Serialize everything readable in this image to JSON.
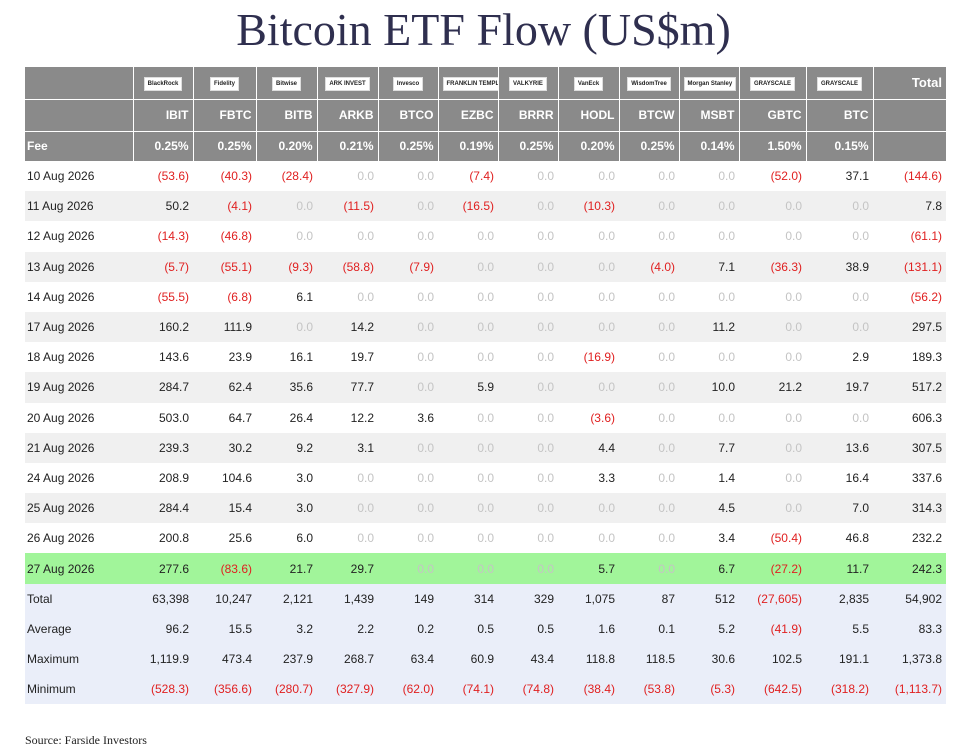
{
  "title": "Bitcoin ETF Flow (US$m)",
  "source": "Source: Farside Investors",
  "header": {
    "total_label": "Total",
    "fee_label": "Fee",
    "issuers": [
      "BlackRock",
      "Fidelity",
      "Bitwise",
      "ARK INVEST",
      "Invesco",
      "FRANKLIN TEMPLETON",
      "VALKYRIE",
      "VanEck",
      "WisdomTree",
      "Morgan Stanley",
      "GRAYSCALE",
      "GRAYSCALE"
    ],
    "tickers": [
      "IBIT",
      "FBTC",
      "BITB",
      "ARKB",
      "BTCO",
      "EZBC",
      "BRRR",
      "HODL",
      "BTCW",
      "MSBT",
      "GBTC",
      "BTC"
    ],
    "fees": [
      "0.25%",
      "0.25%",
      "0.20%",
      "0.21%",
      "0.25%",
      "0.19%",
      "0.25%",
      "0.20%",
      "0.25%",
      "0.14%",
      "1.50%",
      "0.15%"
    ]
  },
  "rows": [
    {
      "date": "10 Aug 2026",
      "cells": [
        "(53.6)",
        "(40.3)",
        "(28.4)",
        "0.0",
        "0.0",
        "(7.4)",
        "0.0",
        "0.0",
        "0.0",
        "0.0",
        "(52.0)",
        "37.1"
      ],
      "total": "(144.6)"
    },
    {
      "date": "11 Aug 2026",
      "cells": [
        "50.2",
        "(4.1)",
        "0.0",
        "(11.5)",
        "0.0",
        "(16.5)",
        "0.0",
        "(10.3)",
        "0.0",
        "0.0",
        "0.0",
        "0.0"
      ],
      "total": "7.8"
    },
    {
      "date": "12 Aug 2026",
      "cells": [
        "(14.3)",
        "(46.8)",
        "0.0",
        "0.0",
        "0.0",
        "0.0",
        "0.0",
        "0.0",
        "0.0",
        "0.0",
        "0.0",
        "0.0"
      ],
      "total": "(61.1)"
    },
    {
      "date": "13 Aug 2026",
      "cells": [
        "(5.7)",
        "(55.1)",
        "(9.3)",
        "(58.8)",
        "(7.9)",
        "0.0",
        "0.0",
        "0.0",
        "(4.0)",
        "7.1",
        "(36.3)",
        "38.9"
      ],
      "total": "(131.1)"
    },
    {
      "date": "14 Aug 2026",
      "cells": [
        "(55.5)",
        "(6.8)",
        "6.1",
        "0.0",
        "0.0",
        "0.0",
        "0.0",
        "0.0",
        "0.0",
        "0.0",
        "0.0",
        "0.0"
      ],
      "total": "(56.2)"
    },
    {
      "date": "17 Aug 2026",
      "cells": [
        "160.2",
        "111.9",
        "0.0",
        "14.2",
        "0.0",
        "0.0",
        "0.0",
        "0.0",
        "0.0",
        "11.2",
        "0.0",
        "0.0"
      ],
      "total": "297.5"
    },
    {
      "date": "18 Aug 2026",
      "cells": [
        "143.6",
        "23.9",
        "16.1",
        "19.7",
        "0.0",
        "0.0",
        "0.0",
        "(16.9)",
        "0.0",
        "0.0",
        "0.0",
        "2.9"
      ],
      "total": "189.3"
    },
    {
      "date": "19 Aug 2026",
      "cells": [
        "284.7",
        "62.4",
        "35.6",
        "77.7",
        "0.0",
        "5.9",
        "0.0",
        "0.0",
        "0.0",
        "10.0",
        "21.2",
        "19.7"
      ],
      "total": "517.2"
    },
    {
      "date": "20 Aug 2026",
      "cells": [
        "503.0",
        "64.7",
        "26.4",
        "12.2",
        "3.6",
        "0.0",
        "0.0",
        "(3.6)",
        "0.0",
        "0.0",
        "0.0",
        "0.0"
      ],
      "total": "606.3"
    },
    {
      "date": "21 Aug 2026",
      "cells": [
        "239.3",
        "30.2",
        "9.2",
        "3.1",
        "0.0",
        "0.0",
        "0.0",
        "4.4",
        "0.0",
        "7.7",
        "0.0",
        "13.6"
      ],
      "total": "307.5"
    },
    {
      "date": "24 Aug 2026",
      "cells": [
        "208.9",
        "104.6",
        "3.0",
        "0.0",
        "0.0",
        "0.0",
        "0.0",
        "3.3",
        "0.0",
        "1.4",
        "0.0",
        "16.4"
      ],
      "total": "337.6"
    },
    {
      "date": "25 Aug 2026",
      "cells": [
        "284.4",
        "15.4",
        "3.0",
        "0.0",
        "0.0",
        "0.0",
        "0.0",
        "0.0",
        "0.0",
        "4.5",
        "0.0",
        "7.0"
      ],
      "total": "314.3"
    },
    {
      "date": "26 Aug 2026",
      "cells": [
        "200.8",
        "25.6",
        "6.0",
        "0.0",
        "0.0",
        "0.0",
        "0.0",
        "0.0",
        "0.0",
        "3.4",
        "(50.4)",
        "46.8"
      ],
      "total": "232.2"
    },
    {
      "date": "27 Aug 2026",
      "cells": [
        "277.6",
        "(83.6)",
        "21.7",
        "29.7",
        "0.0",
        "0.0",
        "0.0",
        "5.7",
        "0.0",
        "6.7",
        "(27.2)",
        "11.7"
      ],
      "total": "242.3",
      "highlight": true
    }
  ],
  "stats": [
    {
      "label": "Total",
      "cells": [
        "63,398",
        "10,247",
        "2,121",
        "1,439",
        "149",
        "314",
        "329",
        "1,075",
        "87",
        "512",
        "(27,605)",
        "2,835"
      ],
      "total": "54,902"
    },
    {
      "label": "Average",
      "cells": [
        "96.2",
        "15.5",
        "3.2",
        "2.2",
        "0.2",
        "0.5",
        "0.5",
        "1.6",
        "0.1",
        "5.2",
        "(41.9)",
        "5.5"
      ],
      "total": "83.3"
    },
    {
      "label": "Maximum",
      "cells": [
        "1,119.9",
        "473.4",
        "237.9",
        "268.7",
        "63.4",
        "60.9",
        "43.4",
        "118.8",
        "118.5",
        "30.6",
        "102.5",
        "191.1"
      ],
      "total": "1,373.8"
    },
    {
      "label": "Minimum",
      "cells": [
        "(528.3)",
        "(356.6)",
        "(280.7)",
        "(327.9)",
        "(62.0)",
        "(74.1)",
        "(74.8)",
        "(38.4)",
        "(53.8)",
        "(5.3)",
        "(642.5)",
        "(318.2)"
      ],
      "total": "(1,113.7)"
    }
  ],
  "colors": {
    "header_bg": "#8a8a8a",
    "negative": "#e02020",
    "zero": "#c4c4c4",
    "highlight_row": "#a1f59a",
    "stats_bg": "#eaeef9",
    "stripe": "#f0f0f0"
  }
}
